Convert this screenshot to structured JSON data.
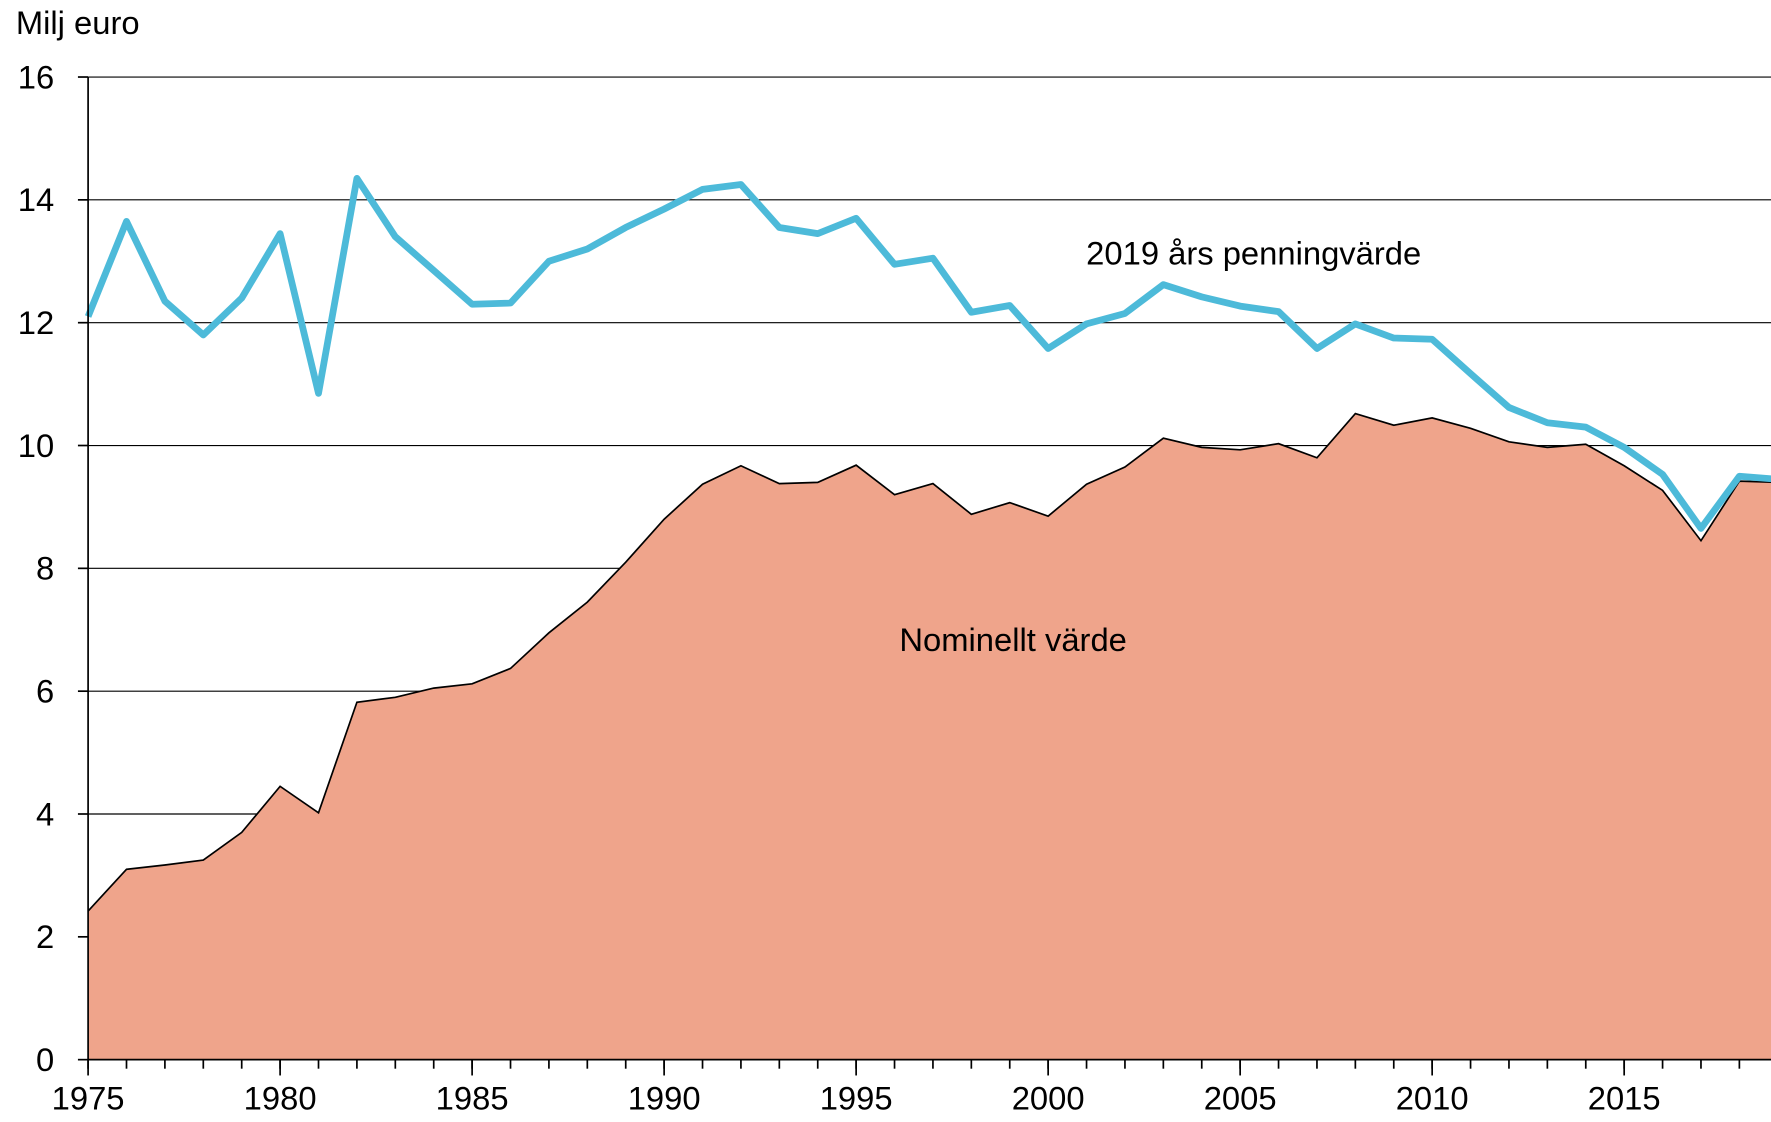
{
  "chart_data": {
    "type": "area-line",
    "y_label": "Milj euro",
    "x": [
      1975,
      1976,
      1977,
      1978,
      1979,
      1980,
      1981,
      1982,
      1983,
      1984,
      1985,
      1986,
      1987,
      1988,
      1989,
      1990,
      1991,
      1992,
      1993,
      1994,
      1995,
      1996,
      1997,
      1998,
      1999,
      2000,
      2001,
      2002,
      2003,
      2004,
      2005,
      2006,
      2007,
      2008,
      2009,
      2010,
      2011,
      2012,
      2013,
      2014,
      2015,
      2016,
      2017,
      2018,
      2019
    ],
    "series": [
      {
        "name": "Nominellt värde",
        "kind": "area",
        "color": "#efa48b",
        "values": [
          2.42,
          3.1,
          3.17,
          3.25,
          3.7,
          4.45,
          4.02,
          5.82,
          5.9,
          6.05,
          6.12,
          6.37,
          6.95,
          7.45,
          8.1,
          8.8,
          9.37,
          9.67,
          9.38,
          9.4,
          9.68,
          9.2,
          9.38,
          8.88,
          9.07,
          8.85,
          9.37,
          9.65,
          10.12,
          9.97,
          9.93,
          10.03,
          9.8,
          10.52,
          10.33,
          10.45,
          10.28,
          10.06,
          9.97,
          10.02,
          9.67,
          9.27,
          8.45,
          9.42,
          9.4
        ]
      },
      {
        "name": "2019 års penningvärde",
        "kind": "line",
        "color": "#4dbad9",
        "values": [
          12.1,
          13.65,
          12.35,
          11.8,
          12.4,
          13.45,
          10.85,
          14.35,
          13.4,
          12.85,
          12.3,
          12.32,
          13.0,
          13.2,
          13.55,
          13.85,
          14.17,
          14.25,
          13.55,
          13.45,
          13.7,
          12.95,
          13.05,
          12.17,
          12.28,
          11.58,
          11.98,
          12.15,
          12.62,
          12.42,
          12.27,
          12.18,
          11.58,
          11.98,
          11.75,
          11.73,
          11.17,
          10.62,
          10.37,
          10.3,
          9.97,
          9.53,
          8.65,
          9.5,
          9.45
        ]
      }
    ],
    "xlim": [
      1975,
      2019
    ],
    "xticks": [
      1975,
      1980,
      1985,
      1990,
      1995,
      2000,
      2005,
      2010,
      2015
    ],
    "ylim": [
      0,
      16
    ],
    "yticks": [
      0,
      2,
      4,
      6,
      8,
      10,
      12,
      14,
      16
    ],
    "grid": true
  }
}
